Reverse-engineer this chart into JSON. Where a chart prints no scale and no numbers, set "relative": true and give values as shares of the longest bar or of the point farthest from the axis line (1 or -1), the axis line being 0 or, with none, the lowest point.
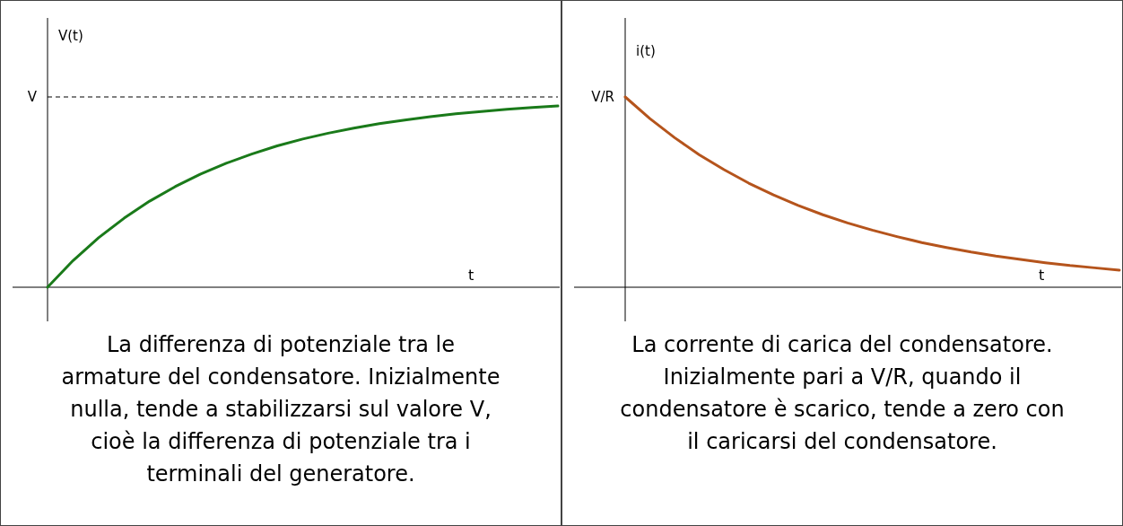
{
  "chart_data": [
    {
      "type": "line",
      "relative": true,
      "xlabel": "t",
      "ylabel": "V(t)",
      "categories": [
        null,
        null,
        null,
        null,
        null,
        null,
        null,
        null,
        null,
        null,
        null,
        null,
        null,
        null,
        null,
        null,
        null,
        null,
        null,
        null,
        null
      ],
      "series": [
        {
          "color": "#1a7a1a",
          "values": [
            0,
            0.147,
            0.273,
            0.381,
            0.475,
            0.555,
            0.625,
            0.684,
            0.735,
            0.78,
            0.818,
            0.85,
            0.878,
            0.903,
            0.923,
            0.941,
            0.957,
            0.97,
            0.982,
            0.992,
            1
          ]
        }
      ],
      "ref_lines": [
        {
          "axis": "y",
          "value": 1.05,
          "label": "V",
          "line_style": "dashed",
          "color": "#000000"
        }
      ],
      "annotations": [
        "La differenza di potenziale tra le armature del condensatore. Inizialmente nulla, tende a stabilizzarsi sul valore V, cioè la differenza di potenziale tra i terminali del generatore."
      ]
    },
    {
      "type": "line",
      "relative": true,
      "xlabel": "t",
      "ylabel": "i(t)",
      "categories": [
        null,
        null,
        null,
        null,
        null,
        null,
        null,
        null,
        null,
        null,
        null,
        null,
        null,
        null,
        null,
        null,
        null,
        null,
        null,
        null,
        null
      ],
      "series": [
        {
          "color": "#b5541c",
          "values": [
            1,
            0.886,
            0.786,
            0.696,
            0.618,
            0.547,
            0.485,
            0.43,
            0.381,
            0.338,
            0.3,
            0.266,
            0.235,
            0.209,
            0.185,
            0.164,
            0.146,
            0.129,
            0.114,
            0.102,
            0.09
          ]
        }
      ],
      "annotations": [
        "V/R",
        "La corrente di carica del condensatore. Inizialmente pari a V/R, quando il condensatore è scarico, tende a zero con il caricarsi del condensatore."
      ]
    }
  ]
}
